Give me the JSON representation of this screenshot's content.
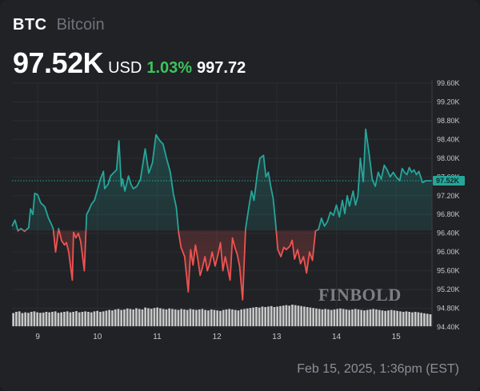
{
  "header": {
    "ticker": "BTC",
    "name": "Bitcoin",
    "price": "97.52K",
    "currency": "USD",
    "change_pct": "1.03%",
    "change_abs": "997.72"
  },
  "footer": {
    "timestamp": "Feb 15, 2025, 1:36pm (EST)"
  },
  "watermark": "FINBOLD",
  "colors": {
    "up": "#26a69a",
    "down": "#ef5350",
    "volume": "#d9d9d9",
    "grid": "#2a2d31",
    "change_positive": "#3cc45a"
  },
  "chart_data": {
    "type": "line",
    "title": "",
    "xlabel": "",
    "ylabel": "",
    "ylim": [
      94.4,
      99.6
    ],
    "y_ticks": [
      "94.40K",
      "94.80K",
      "95.20K",
      "95.60K",
      "96.00K",
      "96.40K",
      "96.80K",
      "97.20K",
      "97.60K",
      "98.00K",
      "98.40K",
      "98.80K",
      "99.20K",
      "99.60K"
    ],
    "x_ticks": [
      {
        "label": "9",
        "x": 9
      },
      {
        "label": "10",
        "x": 10
      },
      {
        "label": "11",
        "x": 11
      },
      {
        "label": "12",
        "x": 12
      },
      {
        "label": "13",
        "x": 13
      },
      {
        "label": "14",
        "x": 14
      },
      {
        "label": "15",
        "x": 15
      }
    ],
    "x_range": [
      8.57,
      15.6
    ],
    "baseline": 96.46,
    "current_price": 97.52,
    "current_price_label": "97.52K",
    "series": [
      {
        "values": [
          [
            8.57,
            96.55
          ],
          [
            8.62,
            96.68
          ],
          [
            8.67,
            96.45
          ],
          [
            8.72,
            96.5
          ],
          [
            8.78,
            96.44
          ],
          [
            8.85,
            96.52
          ],
          [
            8.88,
            96.92
          ],
          [
            8.92,
            96.8
          ],
          [
            8.95,
            97.25
          ],
          [
            9.0,
            97.22
          ],
          [
            9.05,
            97.05
          ],
          [
            9.12,
            96.96
          ],
          [
            9.18,
            96.72
          ],
          [
            9.22,
            96.62
          ],
          [
            9.26,
            96.5
          ],
          [
            9.3,
            96.0
          ],
          [
            9.35,
            96.5
          ],
          [
            9.4,
            96.24
          ],
          [
            9.45,
            96.15
          ],
          [
            9.48,
            96.2
          ],
          [
            9.52,
            96.0
          ],
          [
            9.58,
            95.4
          ],
          [
            9.6,
            96.42
          ],
          [
            9.64,
            96.3
          ],
          [
            9.68,
            96.4
          ],
          [
            9.72,
            96.22
          ],
          [
            9.78,
            95.6
          ],
          [
            9.82,
            96.8
          ],
          [
            9.86,
            96.9
          ],
          [
            9.9,
            97.02
          ],
          [
            9.95,
            97.1
          ],
          [
            10.05,
            97.55
          ],
          [
            10.1,
            97.72
          ],
          [
            10.12,
            97.35
          ],
          [
            10.18,
            97.45
          ],
          [
            10.22,
            97.62
          ],
          [
            10.28,
            97.7
          ],
          [
            10.32,
            97.75
          ],
          [
            10.36,
            98.37
          ],
          [
            10.4,
            97.4
          ],
          [
            10.42,
            97.56
          ],
          [
            10.46,
            97.3
          ],
          [
            10.52,
            97.62
          ],
          [
            10.56,
            97.45
          ],
          [
            10.6,
            97.35
          ],
          [
            10.66,
            97.4
          ],
          [
            10.72,
            97.55
          ],
          [
            10.8,
            98.2
          ],
          [
            10.86,
            97.68
          ],
          [
            10.92,
            97.9
          ],
          [
            10.98,
            98.5
          ],
          [
            11.04,
            98.38
          ],
          [
            11.1,
            98.3
          ],
          [
            11.15,
            98.03
          ],
          [
            11.22,
            97.7
          ],
          [
            11.27,
            97.25
          ],
          [
            11.32,
            96.95
          ],
          [
            11.36,
            96.4
          ],
          [
            11.4,
            96.1
          ],
          [
            11.46,
            95.9
          ],
          [
            11.52,
            95.15
          ],
          [
            11.56,
            96.05
          ],
          [
            11.6,
            95.72
          ],
          [
            11.64,
            96.15
          ],
          [
            11.68,
            95.85
          ],
          [
            11.72,
            95.5
          ],
          [
            11.76,
            95.68
          ],
          [
            11.8,
            95.9
          ],
          [
            11.84,
            95.6
          ],
          [
            11.88,
            95.75
          ],
          [
            11.92,
            96.0
          ],
          [
            11.97,
            95.7
          ],
          [
            12.02,
            95.95
          ],
          [
            12.06,
            96.2
          ],
          [
            12.1,
            95.6
          ],
          [
            12.14,
            95.9
          ],
          [
            12.18,
            95.65
          ],
          [
            12.22,
            95.4
          ],
          [
            12.26,
            96.3
          ],
          [
            12.3,
            96.1
          ],
          [
            12.34,
            95.95
          ],
          [
            12.38,
            95.7
          ],
          [
            12.43,
            94.98
          ],
          [
            12.48,
            96.5
          ],
          [
            12.54,
            97.0
          ],
          [
            12.58,
            97.3
          ],
          [
            12.62,
            97.1
          ],
          [
            12.68,
            97.7
          ],
          [
            12.72,
            98.0
          ],
          [
            12.78,
            98.06
          ],
          [
            12.82,
            97.6
          ],
          [
            12.86,
            97.7
          ],
          [
            12.9,
            97.4
          ],
          [
            12.94,
            97.15
          ],
          [
            12.98,
            96.65
          ],
          [
            13.02,
            96.05
          ],
          [
            13.07,
            95.9
          ],
          [
            13.12,
            96.1
          ],
          [
            13.16,
            96.05
          ],
          [
            13.22,
            96.12
          ],
          [
            13.26,
            96.25
          ],
          [
            13.3,
            95.85
          ],
          [
            13.35,
            96.05
          ],
          [
            13.4,
            95.75
          ],
          [
            13.45,
            95.9
          ],
          [
            13.5,
            95.55
          ],
          [
            13.55,
            96.0
          ],
          [
            13.6,
            95.82
          ],
          [
            13.65,
            96.45
          ],
          [
            13.7,
            96.48
          ],
          [
            13.75,
            96.72
          ],
          [
            13.8,
            96.55
          ],
          [
            13.85,
            96.65
          ],
          [
            13.9,
            96.85
          ],
          [
            13.95,
            96.78
          ],
          [
            14.0,
            97.0
          ],
          [
            14.05,
            96.75
          ],
          [
            14.1,
            97.1
          ],
          [
            14.14,
            96.82
          ],
          [
            14.18,
            97.2
          ],
          [
            14.22,
            96.98
          ],
          [
            14.28,
            97.3
          ],
          [
            14.32,
            97.0
          ],
          [
            14.36,
            97.2
          ],
          [
            14.4,
            98.0
          ],
          [
            14.45,
            97.5
          ],
          [
            14.49,
            98.62
          ],
          [
            14.55,
            98.07
          ],
          [
            14.6,
            97.55
          ],
          [
            14.65,
            97.4
          ],
          [
            14.7,
            97.7
          ],
          [
            14.75,
            97.55
          ],
          [
            14.8,
            97.85
          ],
          [
            14.85,
            97.75
          ],
          [
            14.9,
            97.6
          ],
          [
            14.95,
            97.7
          ],
          [
            15.0,
            97.6
          ],
          [
            15.06,
            97.52
          ],
          [
            15.1,
            97.78
          ],
          [
            15.14,
            97.7
          ],
          [
            15.18,
            97.65
          ],
          [
            15.22,
            97.8
          ],
          [
            15.26,
            97.7
          ],
          [
            15.3,
            97.75
          ],
          [
            15.34,
            97.65
          ],
          [
            15.38,
            97.72
          ],
          [
            15.44,
            97.48
          ],
          [
            15.5,
            97.52
          ],
          [
            15.6,
            97.52
          ]
        ]
      }
    ],
    "volume": [
      0.55,
      0.6,
      0.62,
      0.55,
      0.58,
      0.56,
      0.6,
      0.62,
      0.58,
      0.56,
      0.57,
      0.6,
      0.58,
      0.6,
      0.62,
      0.56,
      0.58,
      0.6,
      0.62,
      0.58,
      0.6,
      0.63,
      0.58,
      0.6,
      0.62,
      0.6,
      0.58,
      0.62,
      0.64,
      0.6,
      0.62,
      0.65,
      0.68,
      0.66,
      0.7,
      0.72,
      0.68,
      0.7,
      0.74,
      0.72,
      0.7,
      0.75,
      0.72,
      0.7,
      0.78,
      0.75,
      0.73,
      0.76,
      0.78,
      0.75,
      0.72,
      0.7,
      0.74,
      0.72,
      0.7,
      0.68,
      0.72,
      0.7,
      0.68,
      0.72,
      0.7,
      0.68,
      0.7,
      0.72,
      0.68,
      0.66,
      0.7,
      0.68,
      0.66,
      0.64,
      0.68,
      0.7,
      0.72,
      0.7,
      0.68,
      0.66,
      0.7,
      0.72,
      0.74,
      0.76,
      0.78,
      0.8,
      0.78,
      0.82,
      0.8,
      0.82,
      0.84,
      0.8,
      0.82,
      0.84,
      0.86,
      0.88,
      0.86,
      0.9,
      0.88,
      0.86,
      0.84,
      0.82,
      0.8,
      0.78,
      0.76,
      0.74,
      0.72,
      0.7,
      0.72,
      0.7,
      0.68,
      0.7,
      0.72,
      0.74,
      0.72,
      0.7,
      0.68,
      0.7,
      0.72,
      0.7,
      0.68,
      0.66,
      0.68,
      0.7,
      0.72,
      0.7,
      0.68,
      0.66,
      0.64,
      0.66,
      0.68,
      0.66,
      0.64,
      0.62,
      0.6,
      0.62,
      0.6,
      0.58,
      0.6,
      0.58,
      0.56,
      0.54,
      0.52,
      0.5
    ]
  }
}
